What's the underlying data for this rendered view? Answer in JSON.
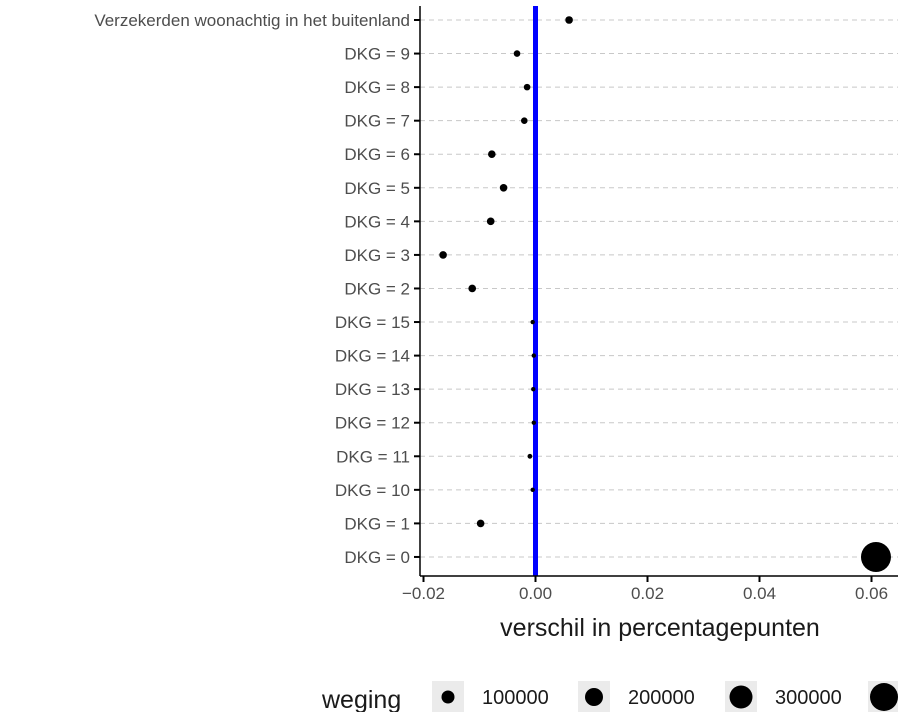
{
  "chart_data": {
    "type": "scatter",
    "xlabel": "verschil in percentagepunten",
    "ylabel": "",
    "xlim": [
      -0.02,
      0.065
    ],
    "xticks": [
      -0.02,
      0.0,
      0.02,
      0.04,
      0.06
    ],
    "xtick_labels": [
      "−0.02",
      "0.00",
      "0.02",
      "0.04",
      "0.06"
    ],
    "grid": "horizontal dashed",
    "reference_line": {
      "x": 0,
      "color": "#0000ff"
    },
    "categories": [
      "Verzekerden woonachtig in het buitenland",
      "DKG = 9",
      "DKG = 8",
      "DKG = 7",
      "DKG = 6",
      "DKG = 5",
      "DKG = 4",
      "DKG = 3",
      "DKG = 2",
      "DKG = 15",
      "DKG = 14",
      "DKG = 13",
      "DKG = 12",
      "DKG = 11",
      "DKG = 10",
      "DKG = 1",
      "DKG = 0"
    ],
    "x": [
      0.006,
      -0.0033,
      -0.0015,
      -0.002,
      -0.0078,
      -0.0057,
      -0.008,
      -0.0165,
      -0.0113,
      -0.0005,
      -0.0003,
      -0.0004,
      -0.0003,
      -0.001,
      -0.0005,
      -0.0098,
      0.0608
    ],
    "size": [
      20000,
      15000,
      15000,
      15000,
      20000,
      20000,
      20000,
      20000,
      20000,
      5000,
      3000,
      4000,
      3000,
      8000,
      5000,
      20000,
      310000
    ],
    "legend": {
      "title": "weging",
      "position": "bottom",
      "values": [
        100000,
        200000,
        300000,
        400000
      ],
      "labels": [
        "100000",
        "200000",
        "300000",
        ""
      ]
    },
    "point_color": "#000000"
  }
}
